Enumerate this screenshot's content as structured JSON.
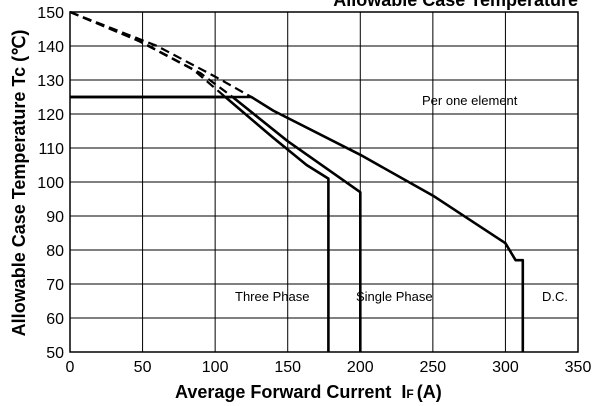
{
  "chart_data": {
    "type": "line",
    "title": "Allowable Case Temperature",
    "xlabel": "Average Forward Current",
    "xlabel_symbol": "I",
    "xlabel_subscript": "F",
    "xlabel_unit": "(A)",
    "ylabel": "Allowable Case Temperature Tc (℃)",
    "xlim": [
      0,
      350
    ],
    "ylim": [
      50,
      150
    ],
    "xticks": [
      0,
      50,
      100,
      150,
      200,
      250,
      300,
      350
    ],
    "yticks": [
      50,
      60,
      70,
      80,
      90,
      100,
      110,
      120,
      130,
      140,
      150
    ],
    "grid": true,
    "annotation": "Per one element",
    "series": [
      {
        "name": "D.C.",
        "style": "solid",
        "points": [
          [
            0,
            125
          ],
          [
            125,
            125
          ],
          [
            140,
            121
          ],
          [
            200,
            108
          ],
          [
            250,
            96
          ],
          [
            300,
            82
          ],
          [
            307,
            77
          ],
          [
            312,
            77
          ],
          [
            312,
            50
          ]
        ]
      },
      {
        "name": "Single Phase",
        "style": "solid",
        "points": [
          [
            0,
            125
          ],
          [
            112,
            125
          ],
          [
            150,
            112
          ],
          [
            180,
            103
          ],
          [
            200,
            97
          ],
          [
            200,
            50
          ]
        ]
      },
      {
        "name": "Three Phase",
        "style": "solid",
        "points": [
          [
            0,
            125
          ],
          [
            107,
            125
          ],
          [
            140,
            113
          ],
          [
            163,
            105
          ],
          [
            178,
            101
          ],
          [
            178,
            50
          ]
        ]
      },
      {
        "name": "",
        "style": "dashed",
        "points": [
          [
            0,
            150
          ],
          [
            60,
            140
          ],
          [
            100,
            131
          ],
          [
            125,
            125
          ]
        ]
      },
      {
        "name": "",
        "style": "dashed",
        "points": [
          [
            0,
            150
          ],
          [
            50,
            141
          ],
          [
            90,
            132
          ],
          [
            112,
            125
          ]
        ]
      },
      {
        "name": "",
        "style": "dashed",
        "points": [
          [
            0,
            150
          ],
          [
            45,
            142
          ],
          [
            85,
            133
          ],
          [
            107,
            125
          ]
        ]
      }
    ]
  }
}
